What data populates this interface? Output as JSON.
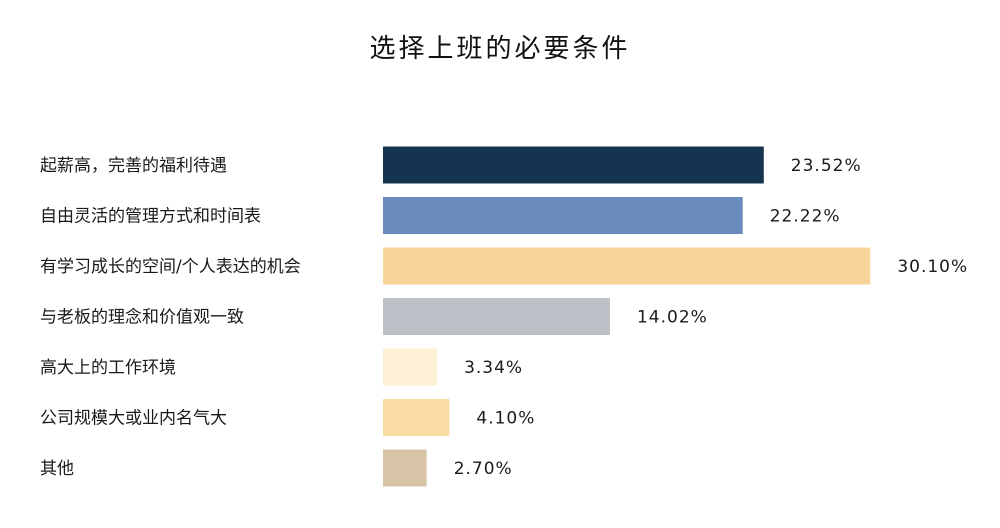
{
  "chart_data": {
    "type": "bar",
    "orientation": "horizontal",
    "title": "选择上班的必要条件",
    "categories": [
      "起薪高，完善的福利待遇",
      "自由灵活的管理方式和时间表",
      "有学习成长的空间/个人表达的机会",
      "与老板的理念和价值观一致",
      "高大上的工作环境",
      "公司规模大或业内名气大",
      "其他"
    ],
    "values": [
      23.52,
      22.22,
      30.1,
      14.02,
      3.34,
      4.1,
      2.7
    ],
    "value_labels": [
      "23.52%",
      "22.22%",
      "30.10%",
      "14.02%",
      "3.34%",
      "4.10%",
      "2.70%"
    ],
    "colors": [
      "#15344f",
      "#6a8bbd",
      "#f7d598",
      "#bcc1c7",
      "#fdf0d5",
      "#f8dca4",
      "#d8c4a9"
    ],
    "unit": "%",
    "grid": false,
    "legend": "none"
  }
}
